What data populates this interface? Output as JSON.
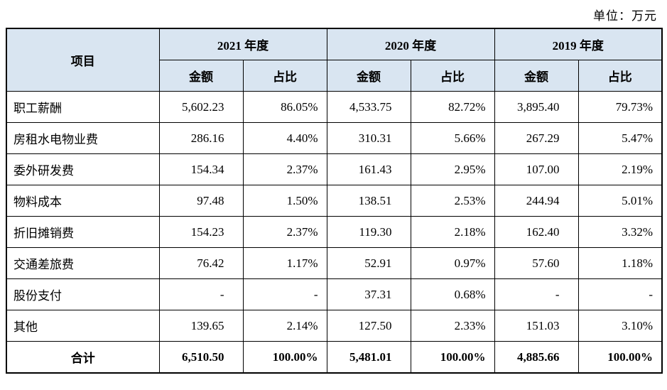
{
  "unit_label": "单位：万元",
  "table": {
    "item_header": "项目",
    "year_groups": [
      {
        "year": "2021 年度",
        "sub": [
          "金额",
          "占比"
        ]
      },
      {
        "year": "2020 年度",
        "sub": [
          "金额",
          "占比"
        ]
      },
      {
        "year": "2019 年度",
        "sub": [
          "金额",
          "占比"
        ]
      }
    ],
    "rows": [
      {
        "item": "职工薪酬",
        "values": [
          "5,602.23",
          "86.05%",
          "4,533.75",
          "82.72%",
          "3,895.40",
          "79.73%"
        ]
      },
      {
        "item": "房租水电物业费",
        "values": [
          "286.16",
          "4.40%",
          "310.31",
          "5.66%",
          "267.29",
          "5.47%"
        ]
      },
      {
        "item": "委外研发费",
        "values": [
          "154.34",
          "2.37%",
          "161.43",
          "2.95%",
          "107.00",
          "2.19%"
        ]
      },
      {
        "item": "物料成本",
        "values": [
          "97.48",
          "1.50%",
          "138.51",
          "2.53%",
          "244.94",
          "5.01%"
        ]
      },
      {
        "item": "折旧摊销费",
        "values": [
          "154.23",
          "2.37%",
          "119.30",
          "2.18%",
          "162.40",
          "3.32%"
        ]
      },
      {
        "item": "交通差旅费",
        "values": [
          "76.42",
          "1.17%",
          "52.91",
          "0.97%",
          "57.60",
          "1.18%"
        ]
      },
      {
        "item": "股份支付",
        "values": [
          "-",
          "-",
          "37.31",
          "0.68%",
          "-",
          "-"
        ]
      },
      {
        "item": "其他",
        "values": [
          "139.65",
          "2.14%",
          "127.50",
          "2.33%",
          "151.03",
          "3.10%"
        ]
      }
    ],
    "total": {
      "item": "合计",
      "values": [
        "6,510.50",
        "100.00%",
        "5,481.01",
        "100.00%",
        "4,885.66",
        "100.00%"
      ]
    }
  }
}
